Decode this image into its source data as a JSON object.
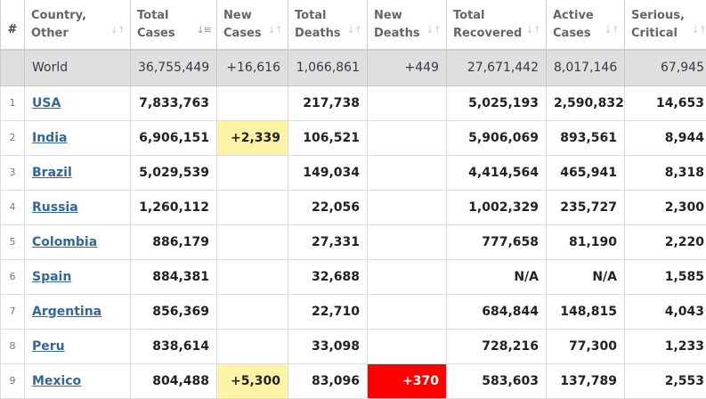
{
  "colors": {
    "new_cases_highlight": "#fff3a6",
    "new_deaths_highlight": "#ff0000",
    "link": "#336699",
    "world_row": "#dfdfdf"
  },
  "headers": {
    "num": "#",
    "country": [
      "Country,",
      "Other"
    ],
    "total_cases": [
      "Total",
      "Cases"
    ],
    "new_cases": [
      "New",
      "Cases"
    ],
    "total_deaths": [
      "Total",
      "Deaths"
    ],
    "new_deaths": [
      "New",
      "Deaths"
    ],
    "total_recovered": [
      "Total",
      "Recovered"
    ],
    "active_cases": [
      "Active",
      "Cases"
    ],
    "serious_critical": [
      "Serious,",
      "Critical"
    ]
  },
  "world": {
    "country": "World",
    "total_cases": "36,755,449",
    "new_cases": "+16,616",
    "total_deaths": "1,066,861",
    "new_deaths": "+449",
    "total_recovered": "27,671,442",
    "active_cases": "8,017,146",
    "serious_critical": "67,945"
  },
  "rows": [
    {
      "rank": "1",
      "country": "USA",
      "total_cases": "7,833,763",
      "new_cases": "",
      "total_deaths": "217,738",
      "new_deaths": "",
      "total_recovered": "5,025,193",
      "active_cases": "2,590,832",
      "serious_critical": "14,653"
    },
    {
      "rank": "2",
      "country": "India",
      "total_cases": "6,906,151",
      "new_cases": "+2,339",
      "total_deaths": "106,521",
      "new_deaths": "",
      "total_recovered": "5,906,069",
      "active_cases": "893,561",
      "serious_critical": "8,944"
    },
    {
      "rank": "3",
      "country": "Brazil",
      "total_cases": "5,029,539",
      "new_cases": "",
      "total_deaths": "149,034",
      "new_deaths": "",
      "total_recovered": "4,414,564",
      "active_cases": "465,941",
      "serious_critical": "8,318"
    },
    {
      "rank": "4",
      "country": "Russia",
      "total_cases": "1,260,112",
      "new_cases": "",
      "total_deaths": "22,056",
      "new_deaths": "",
      "total_recovered": "1,002,329",
      "active_cases": "235,727",
      "serious_critical": "2,300"
    },
    {
      "rank": "5",
      "country": "Colombia",
      "total_cases": "886,179",
      "new_cases": "",
      "total_deaths": "27,331",
      "new_deaths": "",
      "total_recovered": "777,658",
      "active_cases": "81,190",
      "serious_critical": "2,220"
    },
    {
      "rank": "6",
      "country": "Spain",
      "total_cases": "884,381",
      "new_cases": "",
      "total_deaths": "32,688",
      "new_deaths": "",
      "total_recovered": "N/A",
      "active_cases": "N/A",
      "serious_critical": "1,585"
    },
    {
      "rank": "7",
      "country": "Argentina",
      "total_cases": "856,369",
      "new_cases": "",
      "total_deaths": "22,710",
      "new_deaths": "",
      "total_recovered": "684,844",
      "active_cases": "148,815",
      "serious_critical": "4,043"
    },
    {
      "rank": "8",
      "country": "Peru",
      "total_cases": "838,614",
      "new_cases": "",
      "total_deaths": "33,098",
      "new_deaths": "",
      "total_recovered": "728,216",
      "active_cases": "77,300",
      "serious_critical": "1,233"
    },
    {
      "rank": "9",
      "country": "Mexico",
      "total_cases": "804,488",
      "new_cases": "+5,300",
      "total_deaths": "83,096",
      "new_deaths": "+370",
      "total_recovered": "583,603",
      "active_cases": "137,789",
      "serious_critical": "2,553"
    }
  ]
}
